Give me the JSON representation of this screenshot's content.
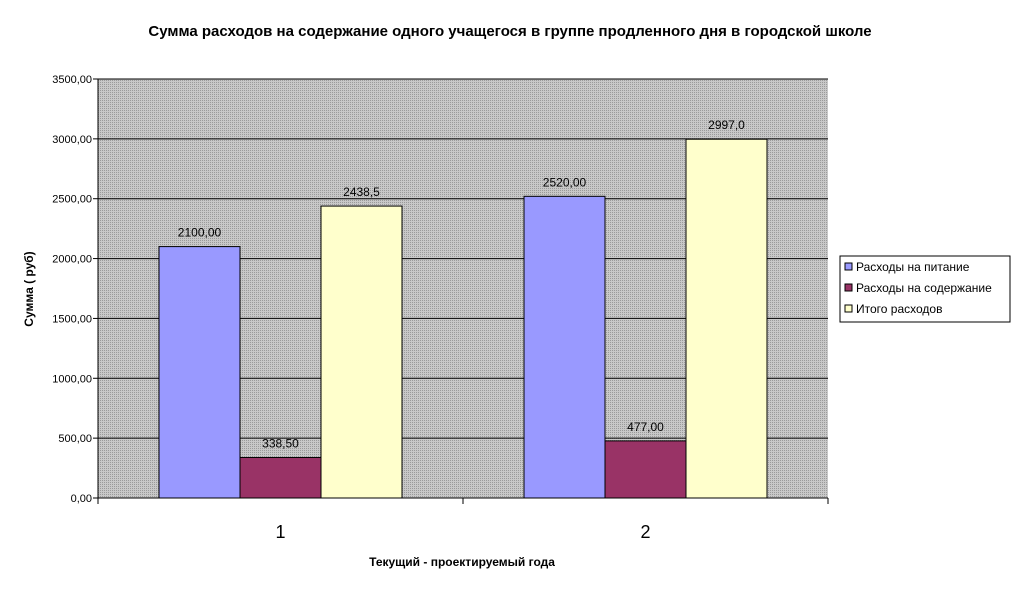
{
  "chart_data": {
    "type": "bar",
    "title": "Сумма расходов на содержание одного учащегося в группе продленного дня в городской школе",
    "xlabel": "Текущий - проектируемый года",
    "ylabel": "Сумма ( руб)",
    "categories": [
      "1",
      "2"
    ],
    "ylim": [
      0,
      3500
    ],
    "yticks": [
      0,
      500,
      1000,
      1500,
      2000,
      2500,
      3000,
      3500
    ],
    "ytick_labels": [
      "0,00",
      "500,00",
      "1000,00",
      "1500,00",
      "2000,00",
      "2500,00",
      "3000,00",
      "3500,00"
    ],
    "grid": true,
    "legend_position": "right",
    "series": [
      {
        "name": "Расходы на питание",
        "color": "#9999ff",
        "values": [
          2100,
          2520
        ],
        "labels": [
          "2100,00",
          "2520,00"
        ]
      },
      {
        "name": "Расходы на содержание",
        "color": "#993366",
        "values": [
          338.5,
          477
        ],
        "labels": [
          "338,50",
          "477,00"
        ]
      },
      {
        "name": "Итого расходов",
        "color": "#ffffcc",
        "values": [
          2438.5,
          2997
        ],
        "labels": [
          "2438,5",
          "2997,0"
        ]
      }
    ]
  }
}
